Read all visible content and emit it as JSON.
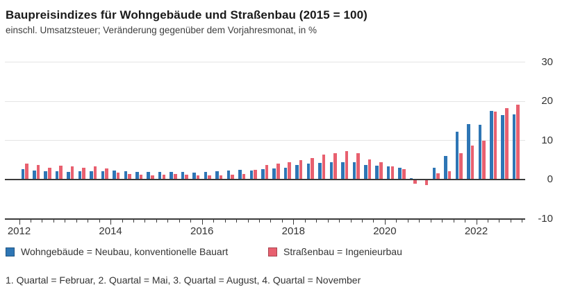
{
  "title": "Baupreisindizes für Wohngebäude und Straßenbau (2015 = 100)",
  "subtitle": "einschl. Umsatzsteuer; Veränderung gegenüber dem Vorjahresmonat, in %",
  "footnote": "1. Quartal = Februar, 2. Quartal = Mai, 3. Quartal = August, 4. Quartal = November",
  "colors": {
    "wohngebaeude": "#2e76b5",
    "strassenbau": "#e8606f",
    "grid": "#e4e4e4",
    "axis": "#3a3a3a",
    "text": "#333333"
  },
  "legend": [
    {
      "label": "Wohngebäude = Neubau, konventionelle Bauart",
      "color": "#2e76b5"
    },
    {
      "label": "Straßenbau = Ingenieurbau",
      "color": "#e8606f"
    }
  ],
  "chart_data": {
    "type": "bar",
    "title": "Baupreisindizes für Wohngebäude und Straßenbau (2015 = 100)",
    "subtitle": "einschl. Umsatzsteuer; Veränderung gegenüber dem Vorjahresmonat, in %",
    "ylabel": "Veränderung gegenüber dem Vorjahresmonat, in %",
    "xlabel": "",
    "ylim": [
      -10,
      30
    ],
    "yticks": [
      30,
      20,
      10,
      0,
      -10
    ],
    "grid": true,
    "legend_position": "bottom",
    "xticklabels": [
      "2012",
      "2014",
      "2016",
      "2018",
      "2020",
      "2022"
    ],
    "x": [
      "2012 Q1",
      "2012 Q2",
      "2012 Q3",
      "2012 Q4",
      "2013 Q1",
      "2013 Q2",
      "2013 Q3",
      "2013 Q4",
      "2014 Q1",
      "2014 Q2",
      "2014 Q3",
      "2014 Q4",
      "2015 Q1",
      "2015 Q2",
      "2015 Q3",
      "2015 Q4",
      "2016 Q1",
      "2016 Q2",
      "2016 Q3",
      "2016 Q4",
      "2017 Q1",
      "2017 Q2",
      "2017 Q3",
      "2017 Q4",
      "2018 Q1",
      "2018 Q2",
      "2018 Q3",
      "2018 Q4",
      "2019 Q1",
      "2019 Q2",
      "2019 Q3",
      "2019 Q4",
      "2020 Q1",
      "2020 Q2",
      "2020 Q3",
      "2020 Q4",
      "2021 Q1",
      "2021 Q2",
      "2021 Q3",
      "2021 Q4",
      "2022 Q1",
      "2022 Q2",
      "2022 Q3",
      "2022 Q4"
    ],
    "series": [
      {
        "name": "Wohngebäude = Neubau, konventionelle Bauart",
        "color": "#2e76b5",
        "values": [
          2.5,
          2.2,
          2.1,
          2.0,
          1.9,
          2.0,
          2.0,
          2.1,
          2.2,
          2.0,
          1.9,
          1.8,
          1.8,
          1.8,
          1.8,
          1.7,
          1.9,
          2.1,
          2.3,
          2.4,
          2.2,
          2.5,
          2.7,
          3.0,
          3.7,
          3.9,
          4.1,
          4.4,
          4.3,
          4.3,
          3.7,
          3.4,
          3.3,
          2.9,
          0.2,
          0.1,
          3.0,
          6.0,
          12.2,
          14.1,
          13.9,
          17.4,
          16.3,
          16.6
        ]
      },
      {
        "name": "Straßenbau = Ingenieurbau",
        "color": "#e8606f",
        "values": [
          4.0,
          3.6,
          3.0,
          3.4,
          3.2,
          3.0,
          3.2,
          2.8,
          1.7,
          1.3,
          1.2,
          1.0,
          1.2,
          1.3,
          1.1,
          1.0,
          0.9,
          1.0,
          1.1,
          1.3,
          2.4,
          3.6,
          3.9,
          4.3,
          4.8,
          5.4,
          6.3,
          6.7,
          7.1,
          6.6,
          5.1,
          4.4,
          3.3,
          2.5,
          -1.0,
          -1.4,
          1.5,
          2.1,
          6.7,
          8.6,
          9.8,
          17.2,
          18.2,
          19.1
        ]
      }
    ]
  }
}
